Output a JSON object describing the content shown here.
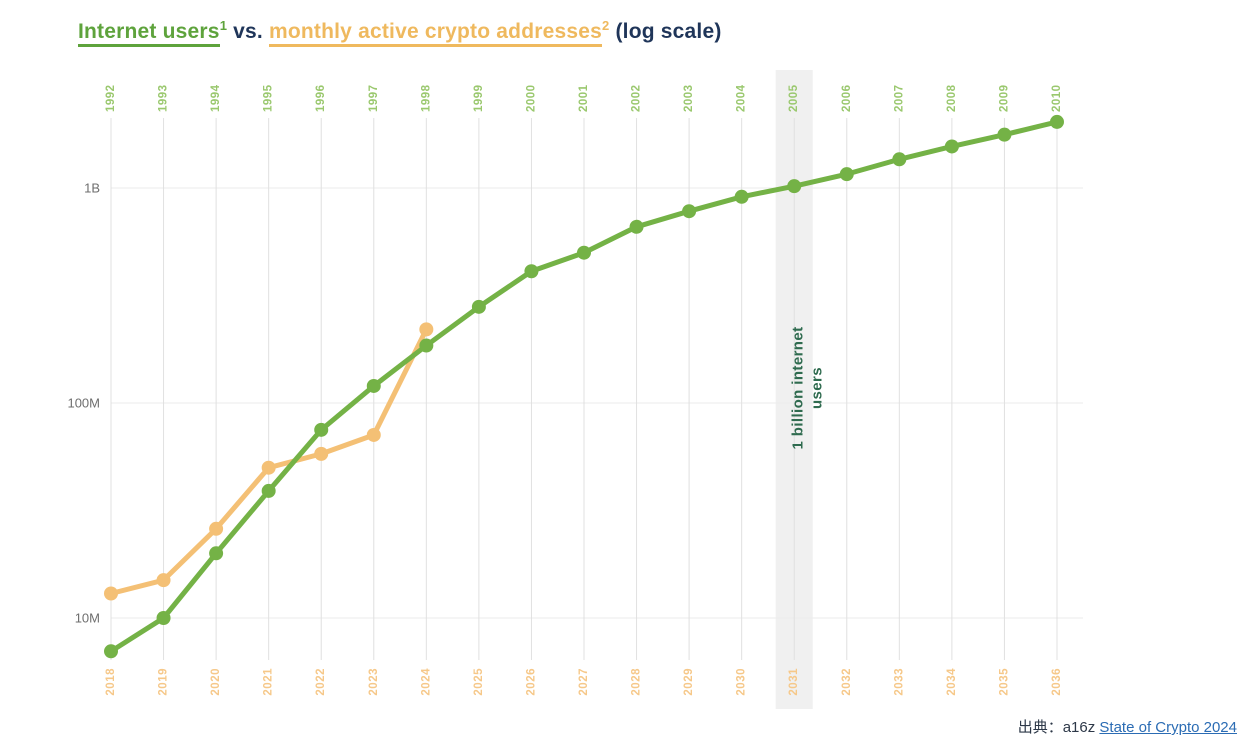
{
  "title": {
    "part1": "Internet users",
    "sup1": "1",
    "middle": " vs. ",
    "part2": "monthly active crypto addresses",
    "sup2": "2",
    "suffix": " (log scale)"
  },
  "annotation": {
    "text": "1 billion internet users"
  },
  "source": {
    "prefix": "出典：a16z ",
    "link_text": "State of Crypto 2024"
  },
  "colors": {
    "green_line": "#74b246",
    "orange_line": "#f4c075",
    "top_axis_label": "#9ac86e",
    "bottom_axis_label": "#f6c889",
    "y_axis_label": "#6e6e6e",
    "grid_vertical": "#e0e0e0",
    "grid_horizontal": "#ebebeb",
    "highlight_band": "#f0f0f0",
    "annotation_text": "#2f6b4f",
    "title_green": "#5ea33c",
    "title_orange": "#efb95e",
    "title_navy": "#1f3559",
    "link_blue": "#2b6cb4"
  },
  "chart_data": {
    "type": "line",
    "title": "Internet users¹ vs. monthly active crypto addresses² (log scale)",
    "y_scale": "log",
    "y_ticks": [
      {
        "label": "1B",
        "value_millions": 1000
      },
      {
        "label": "100M",
        "value_millions": 100
      },
      {
        "label": "10M",
        "value_millions": 10
      }
    ],
    "x_axis_top_years": [
      "1992",
      "1993",
      "1994",
      "1995",
      "1996",
      "1997",
      "1998",
      "1999",
      "2000",
      "2001",
      "2002",
      "2003",
      "2004",
      "2005",
      "2006",
      "2007",
      "2008",
      "2009",
      "2010"
    ],
    "x_axis_bottom_years": [
      "2018",
      "2019",
      "2020",
      "2021",
      "2022",
      "2023",
      "2024",
      "2025",
      "2026",
      "2027",
      "2028",
      "2029",
      "2030",
      "2031",
      "2032",
      "2033",
      "2034",
      "2035",
      "2036"
    ],
    "series": [
      {
        "name": "Internet users",
        "axis": "top",
        "color": "#74b246",
        "values_millions": [
          7,
          10,
          20,
          39,
          75,
          120,
          185,
          280,
          410,
          500,
          660,
          780,
          910,
          1020,
          1160,
          1360,
          1560,
          1770,
          2030
        ]
      },
      {
        "name": "Monthly active crypto addresses",
        "axis": "bottom",
        "color": "#f4c075",
        "values_millions": [
          13,
          15,
          26,
          50,
          58,
          71,
          220
        ]
      }
    ],
    "highlight": {
      "top_year": "2005",
      "bottom_year": "2031",
      "column_index": 13,
      "annotation": "1 billion internet users"
    },
    "legend_position": "none",
    "grid": true
  }
}
